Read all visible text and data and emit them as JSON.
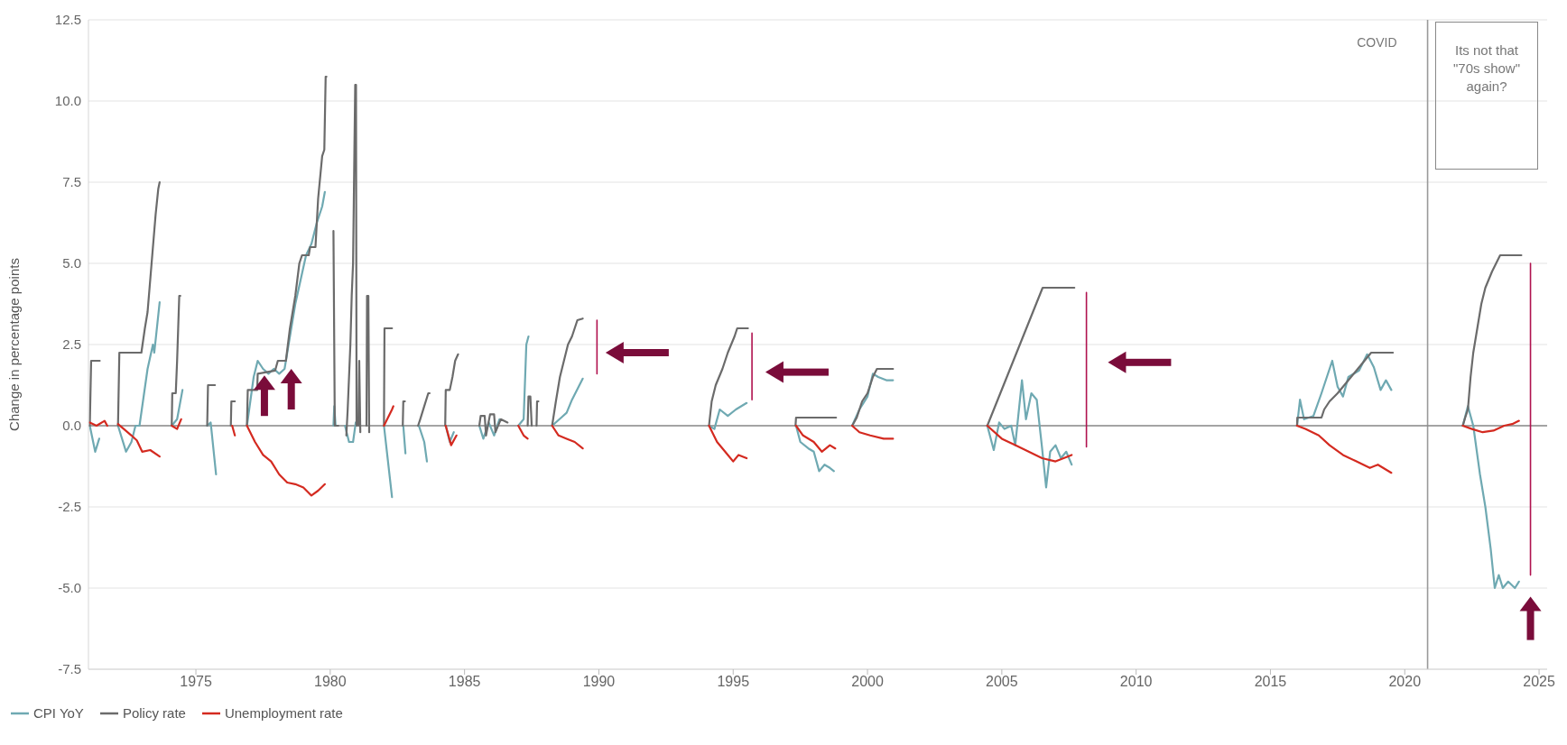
{
  "chart_data": {
    "type": "line",
    "ylabel": "Change in percentage points",
    "xlim": [
      1971,
      2025.3
    ],
    "xticks": [
      1975,
      1980,
      1985,
      1990,
      1995,
      2000,
      2005,
      2010,
      2015,
      2020,
      2025
    ],
    "ylim": [
      -7.5,
      12.5
    ],
    "yticks": [
      -7.5,
      {
        "value": -5,
        "label": "-5.0"
      },
      -2.5,
      {
        "value": 0,
        "label": "0.0"
      },
      2.5,
      {
        "value": 5,
        "label": "5.0"
      },
      7.5,
      {
        "value": 10,
        "label": "10.0"
      },
      12.5
    ],
    "grid": "y",
    "legend": "bottom left",
    "annotations": [
      "Its not that \"70s show\" again?"
    ],
    "ref_lines": [
      {
        "axis": "x",
        "value": 2020.85,
        "label": "COVID",
        "color": "#9a9a9a"
      },
      {
        "axis": "y",
        "value": 0,
        "color": "#8a8a8a"
      }
    ],
    "series": [
      {
        "name": "CPI YoY",
        "color": "#6fa9b2",
        "x": [
          1971.05,
          1971.25,
          1971.4,
          null,
          1972.1,
          1972.4,
          1972.6,
          1972.75,
          1972.9,
          1973.2,
          1973.4,
          1973.45,
          1973.65,
          null,
          1974.1,
          1974.3,
          1974.5,
          null,
          1975.42,
          1975.55,
          1975.75,
          null,
          1976.9,
          1977.15,
          1977.3,
          1977.5,
          1977.7,
          1977.9,
          1978.1,
          1978.3,
          1978.5,
          1978.7,
          1978.9,
          1979.1,
          1979.3,
          1979.5,
          1979.7,
          1979.8,
          null,
          1980.12,
          1980.15,
          1980.2,
          null,
          1980.55,
          1980.7,
          1980.85,
          1980.95,
          null,
          1982.0,
          1982.3,
          null,
          1982.72,
          1982.8,
          null,
          1983.3,
          1983.5,
          1983.6,
          null,
          1984.3,
          1984.45,
          1984.6,
          null,
          1985.55,
          1985.7,
          1985.9,
          1986.1,
          1986.3,
          null,
          1987.0,
          1987.2,
          1987.3,
          1987.38,
          null,
          1988.26,
          1988.6,
          1988.8,
          1989.0,
          1989.4,
          null,
          1994.1,
          1994.3,
          1994.5,
          1994.8,
          1995.1,
          1995.5,
          null,
          1997.34,
          1997.5,
          1997.8,
          1998.0,
          1998.2,
          1998.4,
          1998.6,
          1998.75,
          null,
          1999.43,
          1999.7,
          2000.0,
          2000.2,
          2000.4,
          2000.7,
          2000.95,
          null,
          2004.46,
          2004.7,
          2004.9,
          2005.1,
          2005.35,
          2005.5,
          2005.75,
          2005.9,
          2006.1,
          2006.3,
          2006.5,
          2006.65,
          2006.8,
          2007.0,
          2007.2,
          2007.4,
          2007.6,
          null,
          2015.99,
          2016.1,
          2016.25,
          2016.6,
          2016.9,
          2017.3,
          2017.5,
          2017.7,
          2017.9,
          2018.3,
          2018.6,
          2018.85,
          2019.1,
          2019.3,
          2019.5,
          null,
          2022.16,
          2022.35,
          2022.55,
          2022.8,
          2023.0,
          2023.2,
          2023.35,
          2023.5,
          2023.65,
          2023.85,
          2024.1,
          2024.25
        ],
        "values": [
          0,
          -0.8,
          -0.4,
          null,
          0,
          -0.8,
          -0.5,
          0,
          0,
          1.75,
          2.5,
          2.25,
          3.8,
          null,
          0,
          0.2,
          1.1,
          null,
          0,
          0.1,
          -1.5,
          null,
          0,
          1.5,
          2.0,
          1.75,
          1.6,
          1.75,
          1.6,
          1.75,
          2.75,
          3.75,
          4.5,
          5.25,
          5.6,
          6.25,
          6.75,
          7.2,
          null,
          0,
          0.6,
          0,
          null,
          0,
          -0.5,
          -0.5,
          0.1,
          null,
          0,
          -2.2,
          null,
          0,
          -0.85,
          null,
          0,
          -0.5,
          -1.1,
          null,
          0,
          -0.5,
          -0.2,
          null,
          0,
          -0.4,
          0.1,
          -0.3,
          0.2,
          null,
          0,
          0.2,
          2.5,
          2.75,
          null,
          0,
          0.25,
          0.4,
          0.8,
          1.45,
          null,
          0,
          -0.1,
          0.5,
          0.3,
          0.5,
          0.7,
          null,
          0,
          -0.5,
          -0.7,
          -0.8,
          -1.4,
          -1.2,
          -1.3,
          -1.4,
          null,
          0,
          0.5,
          0.9,
          1.6,
          1.5,
          1.4,
          1.4,
          null,
          0,
          -0.75,
          0.1,
          -0.1,
          0,
          -0.6,
          1.4,
          0.2,
          1.0,
          0.8,
          -0.7,
          -1.9,
          -0.8,
          -0.6,
          -1.0,
          -0.8,
          -1.2,
          null,
          0,
          0.8,
          0.2,
          0.3,
          1.0,
          2.0,
          1.2,
          0.9,
          1.5,
          1.7,
          2.2,
          1.8,
          1.1,
          1.4,
          1.1,
          null,
          0,
          0.6,
          0,
          -1.5,
          -2.5,
          -3.8,
          -5.0,
          -4.6,
          -5.0,
          -4.8,
          -5.0,
          -4.8
        ]
      },
      {
        "name": "Policy rate",
        "color": "#6b6b6b",
        "x": [
          1971.05,
          1971.1,
          1971.42,
          null,
          1972.1,
          1972.15,
          1972.97,
          1973.1,
          1973.2,
          1973.35,
          1973.5,
          1973.6,
          1973.65,
          null,
          1974.1,
          1974.12,
          1974.25,
          1974.3,
          1974.38,
          1974.42,
          null,
          1975.42,
          1975.45,
          1975.71,
          null,
          1976.3,
          1976.32,
          1976.45,
          null,
          1976.9,
          1976.93,
          1977.28,
          1977.3,
          1977.95,
          1978.05,
          1978.35,
          1978.5,
          1978.7,
          1978.85,
          1978.95,
          1979.2,
          1979.25,
          1979.45,
          1979.55,
          1979.7,
          1979.78,
          1979.83,
          1979.86,
          null,
          1980.12,
          1980.17,
          1980.3,
          null,
          1980.6,
          1980.65,
          1980.75,
          1980.8,
          1980.85,
          1980.9,
          1980.93,
          1980.96,
          1980.98,
          null,
          1981.05,
          1981.08,
          1981.12,
          null,
          1981.35,
          1981.37,
          1981.42,
          1981.45,
          null,
          1982.0,
          1982.02,
          1982.3,
          null,
          1982.7,
          1982.72,
          1982.78,
          null,
          1983.27,
          1983.35,
          1983.5,
          1983.65,
          1983.7,
          null,
          1984.28,
          1984.3,
          1984.45,
          1984.55,
          1984.65,
          1984.76,
          null,
          1985.55,
          1985.6,
          1985.75,
          1985.8,
          1985.95,
          1986.1,
          1986.15,
          1986.35,
          1986.6,
          null,
          1987.35,
          1987.38,
          1987.45,
          1987.5,
          null,
          1987.68,
          1987.7,
          1987.75,
          null,
          1988.26,
          1988.4,
          1988.55,
          1988.7,
          1988.85,
          1989.0,
          1989.2,
          1989.4,
          null,
          1994.1,
          1994.2,
          1994.35,
          1994.6,
          1994.8,
          1995.05,
          1995.15,
          1995.55,
          null,
          1997.32,
          1997.34,
          1998.83,
          null,
          1999.43,
          1999.6,
          1999.8,
          2000.0,
          2000.2,
          2000.35,
          2000.95,
          null,
          2004.46,
          2006.52,
          2007.7,
          null,
          2015.99,
          2016.0,
          2016.9,
          2017.0,
          2017.2,
          2017.5,
          2017.75,
          2018.0,
          2018.25,
          2018.5,
          2018.75,
          2019.56,
          null,
          2022.16,
          2022.25,
          2022.35,
          2022.45,
          2022.55,
          2022.7,
          2022.85,
          2023.0,
          2023.25,
          2023.4,
          2023.55,
          2024.34
        ],
        "values": [
          0,
          2.0,
          2.0,
          null,
          0,
          2.25,
          2.25,
          3.0,
          3.5,
          5.0,
          6.5,
          7.3,
          7.5,
          null,
          0,
          1.0,
          1.0,
          2.0,
          4.0,
          4.0,
          null,
          0,
          1.25,
          1.25,
          null,
          0,
          0.75,
          0.75,
          null,
          0,
          1.1,
          1.1,
          1.6,
          1.7,
          2.0,
          2.0,
          3.0,
          4.0,
          5.0,
          5.25,
          5.25,
          5.5,
          5.5,
          7.0,
          8.3,
          8.5,
          10.75,
          10.75,
          null,
          6.0,
          0,
          0,
          null,
          -0.3,
          0.5,
          2.5,
          4.0,
          5.0,
          8.5,
          10.5,
          10.5,
          0,
          null,
          0,
          2.0,
          -0.2,
          null,
          0,
          4.0,
          4.0,
          -0.2,
          null,
          0,
          3.0,
          3.0,
          null,
          0,
          0.75,
          0.75,
          null,
          0,
          0.2,
          0.6,
          1.0,
          1.0,
          null,
          0,
          1.1,
          1.1,
          1.5,
          2.0,
          2.2,
          null,
          0,
          0.3,
          0.3,
          -0.3,
          0.35,
          0.35,
          -0.2,
          0.2,
          0.1,
          null,
          0,
          0.9,
          0.9,
          0,
          null,
          0,
          0.75,
          0.75,
          null,
          0,
          0.75,
          1.5,
          2.0,
          2.5,
          2.75,
          3.25,
          3.3,
          null,
          0,
          0.75,
          1.25,
          1.75,
          2.25,
          2.75,
          3.0,
          3.0,
          null,
          0,
          0.25,
          0.25,
          null,
          0,
          0.25,
          0.75,
          1.0,
          1.5,
          1.75,
          1.75,
          null,
          0,
          4.25,
          4.25,
          null,
          0,
          0.25,
          0.25,
          0.5,
          0.75,
          1.0,
          1.25,
          1.5,
          1.75,
          2.0,
          2.25,
          2.25,
          null,
          0,
          0.25,
          0.5,
          1.5,
          2.25,
          3.0,
          3.75,
          4.25,
          4.75,
          5.0,
          5.25,
          5.25
        ]
      },
      {
        "name": "Unemployment rate",
        "color": "#d42a20",
        "x": [
          1971.05,
          1971.3,
          1971.6,
          1971.7,
          null,
          1972.1,
          1972.6,
          1972.8,
          1973.0,
          1973.3,
          1973.65,
          null,
          1974.1,
          1974.3,
          1974.45,
          null,
          1976.35,
          1976.45,
          null,
          1976.9,
          1977.2,
          1977.5,
          1977.8,
          1978.1,
          1978.4,
          1978.7,
          1979.0,
          1979.3,
          1979.55,
          1979.8,
          null,
          1982.0,
          1982.3,
          1982.35,
          null,
          1984.3,
          1984.5,
          1984.7,
          null,
          1987.0,
          1987.2,
          1987.35,
          null,
          1988.26,
          1988.5,
          1988.8,
          1989.1,
          1989.4,
          null,
          1994.1,
          1994.4,
          1994.7,
          1995.0,
          1995.2,
          1995.5,
          null,
          1997.34,
          1997.6,
          1998.0,
          1998.3,
          1998.6,
          1998.8,
          null,
          1999.43,
          1999.7,
          2000.1,
          2000.6,
          2000.95,
          null,
          2004.46,
          2005.0,
          2005.5,
          2006.0,
          2006.5,
          2007.0,
          2007.6,
          null,
          2015.99,
          2016.3,
          2016.8,
          2017.2,
          2017.7,
          2018.2,
          2018.7,
          2019.0,
          2019.5,
          null,
          2022.16,
          2022.5,
          2022.9,
          2023.3,
          2023.7,
          2024.0,
          2024.25
        ],
        "values": [
          0.1,
          0,
          0.15,
          0,
          null,
          0.05,
          -0.3,
          -0.45,
          -0.8,
          -0.75,
          -0.95,
          null,
          0,
          -0.1,
          0.2,
          null,
          0,
          -0.3,
          null,
          0,
          -0.5,
          -0.9,
          -1.1,
          -1.5,
          -1.75,
          -1.8,
          -1.9,
          -2.15,
          -2.0,
          -1.8,
          null,
          0,
          0.5,
          0.6,
          null,
          0,
          -0.6,
          -0.3,
          null,
          0,
          -0.3,
          -0.4,
          null,
          0,
          -0.3,
          -0.4,
          -0.5,
          -0.7,
          null,
          0,
          -0.5,
          -0.8,
          -1.1,
          -0.9,
          -1.0,
          null,
          0,
          -0.3,
          -0.5,
          -0.8,
          -0.6,
          -0.7,
          null,
          0,
          -0.2,
          -0.3,
          -0.4,
          -0.4,
          null,
          0,
          -0.4,
          -0.6,
          -0.8,
          -1.0,
          -1.1,
          -0.9,
          null,
          0,
          -0.1,
          -0.3,
          -0.6,
          -0.9,
          -1.1,
          -1.3,
          -1.2,
          -1.45,
          null,
          0,
          -0.1,
          -0.2,
          -0.15,
          0,
          0.05,
          0.15
        ]
      },
      {
        "color": "#b0124f",
        "x": [
          1989.93,
          1989.93,
          null,
          1995.7,
          1995.7,
          null,
          2008.15,
          2008.15,
          null,
          2024.68,
          2024.68
        ],
        "values": [
          3.25,
          1.6,
          null,
          2.85,
          0.8,
          null,
          4.1,
          -0.65,
          null,
          5.0,
          -4.6
        ]
      }
    ]
  }
}
